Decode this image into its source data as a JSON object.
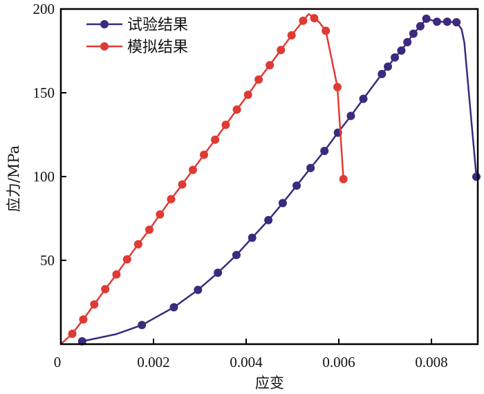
{
  "chart_data": {
    "type": "line",
    "xlabel": "应变",
    "ylabel": "应力/MPa",
    "xlim": [
      0,
      0.009
    ],
    "ylim": [
      0,
      200
    ],
    "xticks": [
      0,
      0.002,
      0.004,
      0.006,
      0.008
    ],
    "xtick_labels": [
      "0",
      "0.002",
      "0.004",
      "0.006",
      "0.008"
    ],
    "yticks": [
      50,
      100,
      150,
      200
    ],
    "ytick_labels": [
      "50",
      "100",
      "150",
      "200"
    ],
    "grid": false,
    "legend_position": "top-left",
    "series": [
      {
        "name": "试验结果",
        "color": "#3b2a7e",
        "markers": [
          [
            0.00046,
            1.7
          ],
          [
            0.00175,
            11.4
          ],
          [
            0.00244,
            22.0
          ],
          [
            0.00296,
            32.4
          ],
          [
            0.00339,
            42.6
          ],
          [
            0.00379,
            53.2
          ],
          [
            0.00413,
            63.5
          ],
          [
            0.00448,
            74.0
          ],
          [
            0.00479,
            84.2
          ],
          [
            0.00509,
            94.6
          ],
          [
            0.00539,
            105.1
          ],
          [
            0.00569,
            115.3
          ],
          [
            0.00598,
            126.2
          ],
          [
            0.00626,
            136.2
          ],
          [
            0.00653,
            146.4
          ],
          [
            0.00693,
            161.2
          ],
          [
            0.00706,
            165.6
          ],
          [
            0.00721,
            171.1
          ],
          [
            0.00735,
            175.2
          ],
          [
            0.00748,
            180.2
          ],
          [
            0.00761,
            185.3
          ],
          [
            0.00776,
            189.7
          ],
          [
            0.00789,
            194.2
          ],
          [
            0.00812,
            192.4
          ],
          [
            0.00834,
            192.4
          ],
          [
            0.00854,
            192.1
          ],
          [
            0.00897,
            99.9
          ]
        ],
        "curve": [
          [
            0.00046,
            1.7
          ],
          [
            0.0012,
            6
          ],
          [
            0.00175,
            11.4
          ],
          [
            0.00244,
            22.0
          ],
          [
            0.00296,
            32.4
          ],
          [
            0.00339,
            42.6
          ],
          [
            0.00379,
            53.2
          ],
          [
            0.00413,
            63.5
          ],
          [
            0.00448,
            74.0
          ],
          [
            0.00479,
            84.2
          ],
          [
            0.00509,
            94.6
          ],
          [
            0.00539,
            105.1
          ],
          [
            0.00569,
            115.3
          ],
          [
            0.00598,
            126.2
          ],
          [
            0.00626,
            136.2
          ],
          [
            0.00653,
            146.4
          ],
          [
            0.00693,
            161.2
          ],
          [
            0.00706,
            165.6
          ],
          [
            0.00721,
            171.1
          ],
          [
            0.00735,
            175.2
          ],
          [
            0.00748,
            180.2
          ],
          [
            0.00761,
            185.3
          ],
          [
            0.00776,
            189.7
          ],
          [
            0.00789,
            194.2
          ],
          [
            0.00812,
            192.4
          ],
          [
            0.00834,
            192.4
          ],
          [
            0.00854,
            192.1
          ],
          [
            0.00865,
            188
          ],
          [
            0.00871,
            180
          ],
          [
            0.00897,
            99.9
          ]
        ]
      },
      {
        "name": "模拟结果",
        "color": "#e03a34",
        "markers": [
          [
            0.000247,
            6.2
          ],
          [
            0.000484,
            14.7
          ],
          [
            0.000721,
            23.7
          ],
          [
            0.000958,
            32.8
          ],
          [
            0.0012,
            41.6
          ],
          [
            0.00143,
            50.6
          ],
          [
            0.00167,
            59.6
          ],
          [
            0.00191,
            68.3
          ],
          [
            0.00214,
            77.4
          ],
          [
            0.00238,
            86.5
          ],
          [
            0.00262,
            95.3
          ],
          [
            0.00285,
            104.0
          ],
          [
            0.00309,
            113.0
          ],
          [
            0.00333,
            122.0
          ],
          [
            0.00356,
            130.9
          ],
          [
            0.0038,
            140.0
          ],
          [
            0.00404,
            148.8
          ],
          [
            0.00427,
            157.9
          ],
          [
            0.00451,
            166.5
          ],
          [
            0.00475,
            175.5
          ],
          [
            0.00498,
            184.3
          ],
          [
            0.00523,
            193.0
          ],
          [
            0.00547,
            194.5
          ],
          [
            0.00572,
            187.0
          ],
          [
            0.00597,
            153.4
          ],
          [
            0.0061,
            98.5
          ]
        ],
        "curve": [
          [
            0,
            0
          ],
          [
            0.000247,
            6.2
          ],
          [
            0.000484,
            14.7
          ],
          [
            0.000721,
            23.7
          ],
          [
            0.000958,
            32.8
          ],
          [
            0.0012,
            41.6
          ],
          [
            0.00143,
            50.6
          ],
          [
            0.00167,
            59.6
          ],
          [
            0.00191,
            68.3
          ],
          [
            0.00214,
            77.4
          ],
          [
            0.00238,
            86.5
          ],
          [
            0.00262,
            95.3
          ],
          [
            0.00285,
            104.0
          ],
          [
            0.00309,
            113.0
          ],
          [
            0.00333,
            122.0
          ],
          [
            0.00356,
            130.9
          ],
          [
            0.0038,
            140.0
          ],
          [
            0.00404,
            148.8
          ],
          [
            0.00427,
            157.9
          ],
          [
            0.00451,
            166.5
          ],
          [
            0.00475,
            175.5
          ],
          [
            0.00498,
            184.3
          ],
          [
            0.00523,
            193.0
          ],
          [
            0.00535,
            197
          ],
          [
            0.00547,
            194.5
          ],
          [
            0.00558,
            192
          ],
          [
            0.00572,
            187.0
          ],
          [
            0.00597,
            153.4
          ],
          [
            0.0061,
            98.5
          ]
        ]
      }
    ]
  }
}
